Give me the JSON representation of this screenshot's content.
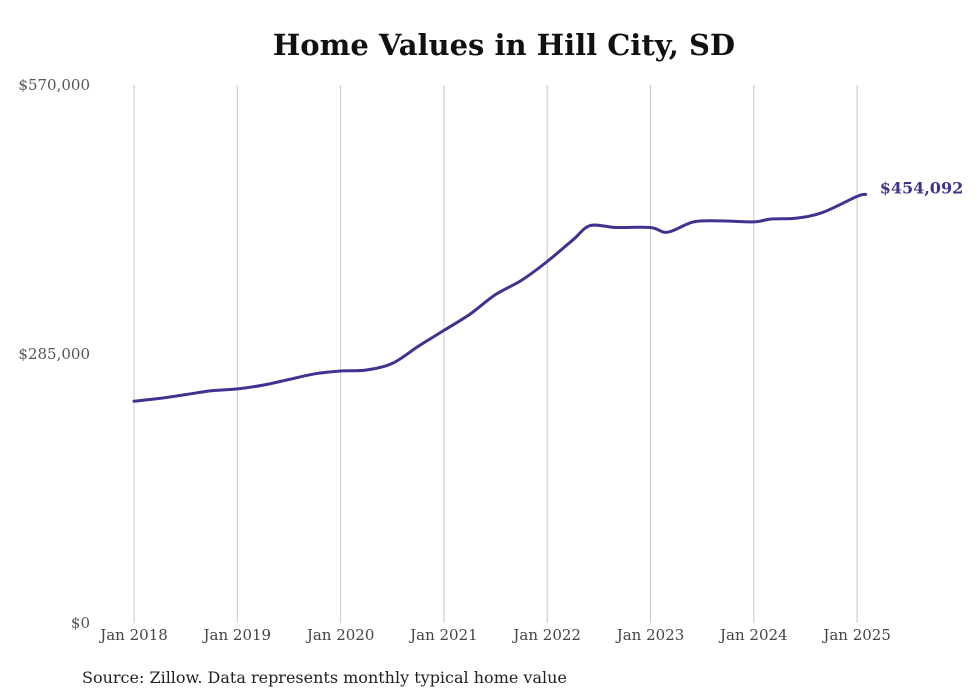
{
  "chart_data": {
    "type": "line",
    "title": "Home Values in Hill City, SD",
    "source": "Source: Zillow. Data represents monthly typical home value",
    "xlabel": "",
    "ylabel": "",
    "ylim": [
      0,
      570000
    ],
    "y_ticks": [
      {
        "value": 0,
        "label": "$0"
      },
      {
        "value": 285000,
        "label": "$285,000"
      },
      {
        "value": 570000,
        "label": "$570,000"
      }
    ],
    "x_ticks": [
      {
        "year": 2018,
        "label": "Jan 2018"
      },
      {
        "year": 2019,
        "label": "Jan 2019"
      },
      {
        "year": 2020,
        "label": "Jan 2020"
      },
      {
        "year": 2021,
        "label": "Jan 2021"
      },
      {
        "year": 2022,
        "label": "Jan 2022"
      },
      {
        "year": 2023,
        "label": "Jan 2023"
      },
      {
        "year": 2024,
        "label": "Jan 2024"
      },
      {
        "year": 2025,
        "label": "Jan 2025"
      }
    ],
    "grid": "vertical",
    "line_color": "#3d3490",
    "end_label": "$454,092",
    "series": [
      {
        "x": [
          "2018-01",
          "2018-04",
          "2018-07",
          "2018-10",
          "2019-01",
          "2019-04",
          "2019-07",
          "2019-10",
          "2020-01",
          "2020-04",
          "2020-07",
          "2020-10",
          "2021-01",
          "2021-04",
          "2021-07",
          "2021-10",
          "2022-01",
          "2022-04",
          "2022-06",
          "2022-09",
          "2023-01",
          "2023-03",
          "2023-06",
          "2023-09",
          "2024-01",
          "2024-03",
          "2024-06",
          "2024-09",
          "2025-01",
          "2025-02"
        ],
        "values": [
          235000,
          238000,
          242000,
          246000,
          248000,
          252000,
          258000,
          264000,
          267000,
          268000,
          275000,
          293000,
          310000,
          327000,
          348000,
          363000,
          383000,
          406000,
          421000,
          419000,
          419000,
          414000,
          425000,
          426000,
          425000,
          428000,
          429000,
          435000,
          452000,
          454092
        ]
      }
    ]
  }
}
